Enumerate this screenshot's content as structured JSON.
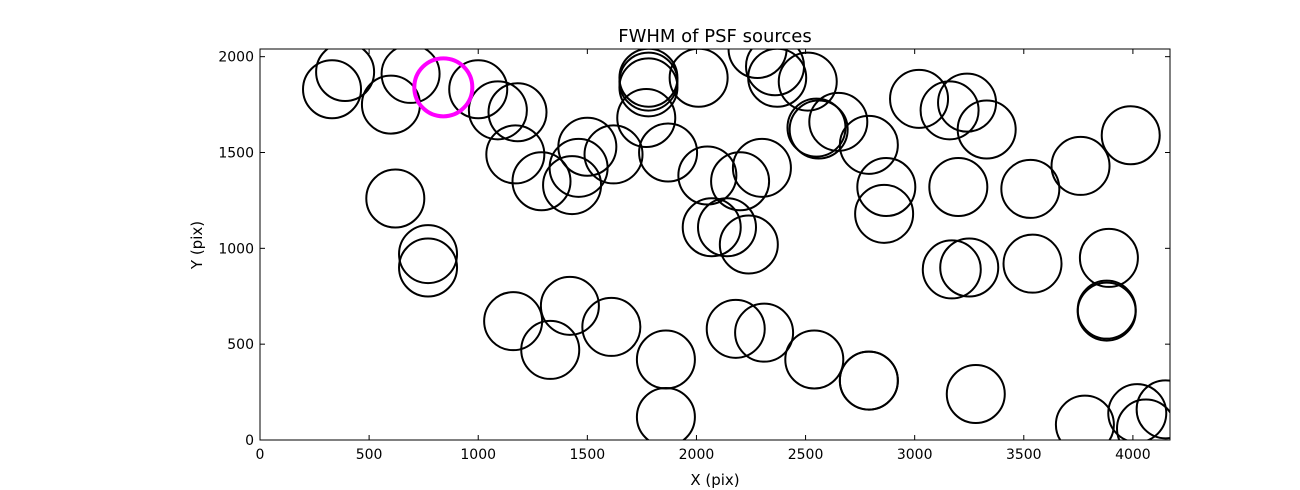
{
  "chart_data": {
    "type": "scatter",
    "title": "FWHM of PSF sources",
    "xlabel": "X (pix)",
    "ylabel": "Y (pix)",
    "xlim": [
      0,
      4170
    ],
    "ylim": [
      0,
      2040
    ],
    "xticks": [
      0,
      500,
      1000,
      1500,
      2000,
      2500,
      3000,
      3500,
      4000
    ],
    "yticks": [
      0,
      500,
      1000,
      1500,
      2000
    ],
    "grid": false,
    "marker_color": "#000000",
    "highlight_color": "#ff00ff",
    "series": [
      {
        "marker": "open-circle",
        "x": [
          330,
          390,
          600,
          690,
          1000,
          1090,
          1180,
          1170,
          1290,
          1430,
          1460,
          1500,
          1620,
          1770,
          1780,
          1780,
          1780,
          1870,
          2010,
          2050,
          2070,
          2140,
          2200,
          2300,
          2240,
          2280,
          2360,
          2370,
          2510,
          2550,
          2560,
          2650,
          2790,
          2870,
          2860,
          3020,
          3160,
          3240,
          3200,
          3330,
          3170,
          3250,
          3530,
          3760,
          3990,
          3540,
          3890,
          3880,
          3880,
          620,
          770,
          770,
          1160,
          1330,
          1420,
          1610,
          1860,
          1860,
          2180,
          2310,
          2540,
          2790,
          2790,
          3280,
          3780,
          4020,
          4060,
          4150
        ],
        "y": [
          1830,
          1920,
          1750,
          1910,
          1830,
          1720,
          1710,
          1490,
          1350,
          1330,
          1420,
          1530,
          1490,
          1680,
          1840,
          1870,
          1890,
          1500,
          1890,
          1380,
          1110,
          1110,
          1350,
          1420,
          1020,
          2040,
          1950,
          1890,
          1870,
          1630,
          1620,
          1660,
          1540,
          1320,
          1180,
          1780,
          1720,
          1760,
          1320,
          1620,
          890,
          900,
          1310,
          1430,
          1590,
          920,
          950,
          680,
          670,
          1260,
          970,
          900,
          620,
          470,
          700,
          590,
          420,
          120,
          580,
          560,
          420,
          310,
          310,
          240,
          80,
          140,
          60,
          160
        ]
      },
      {
        "marker": "highlight-circle",
        "x": [
          840
        ],
        "y": [
          1840
        ]
      }
    ]
  }
}
